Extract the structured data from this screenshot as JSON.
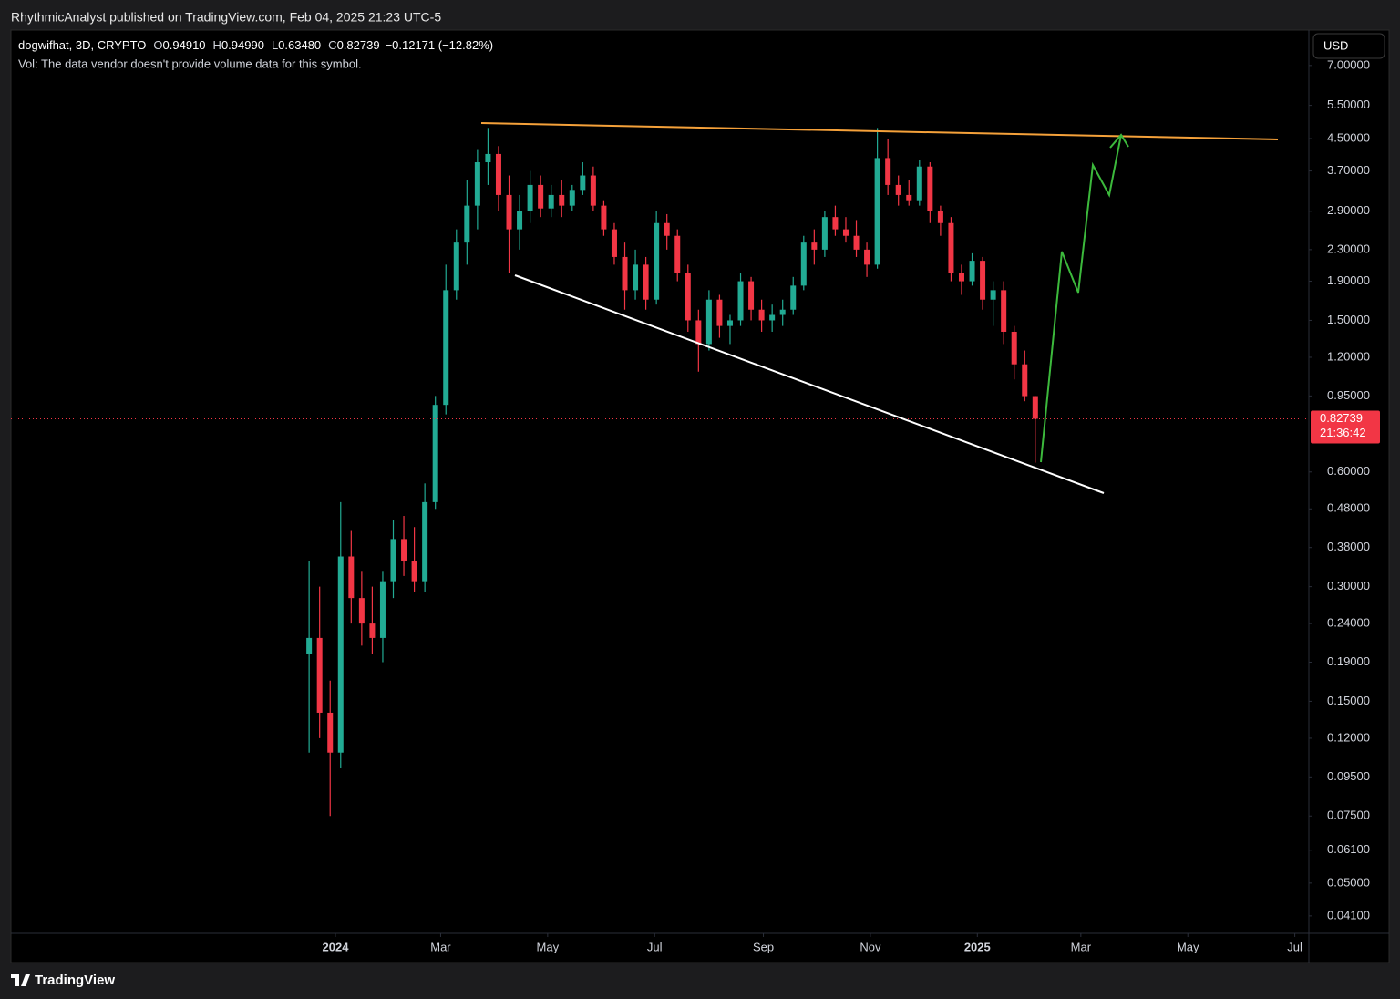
{
  "header": {
    "published": "RhythmicAnalyst published on TradingView.com, Feb 04, 2025 21:23 UTC-5"
  },
  "chart_data": {
    "type": "candlestick",
    "symbol": "dogwifhat, 3D, CRYPTO",
    "ohlc_legend": [
      {
        "label": "O",
        "value": "0.94910"
      },
      {
        "label": "H",
        "value": "0.94990"
      },
      {
        "label": "L",
        "value": "0.63480"
      },
      {
        "label": "C",
        "value": "0.82739"
      }
    ],
    "change": "−0.12171 (−12.82%)",
    "volume_note": "Vol: The data vendor doesn't provide volume data for this symbol.",
    "currency": "USD",
    "countdown": "21:36:42",
    "log_scale": true,
    "grid": false,
    "up_color": "#22ab94",
    "down_color": "#f23645",
    "x": [
      "2023-12-17",
      "2023-12-23",
      "2023-12-29",
      "2024-01-04",
      "2024-01-10",
      "2024-01-16",
      "2024-01-22",
      "2024-01-28",
      "2024-02-03",
      "2024-02-09",
      "2024-02-15",
      "2024-02-21",
      "2024-02-27",
      "2024-03-04",
      "2024-03-10",
      "2024-03-16",
      "2024-03-22",
      "2024-03-28",
      "2024-04-03",
      "2024-04-09",
      "2024-04-15",
      "2024-04-21",
      "2024-04-27",
      "2024-05-03",
      "2024-05-09",
      "2024-05-15",
      "2024-05-21",
      "2024-05-27",
      "2024-06-02",
      "2024-06-08",
      "2024-06-14",
      "2024-06-20",
      "2024-06-26",
      "2024-07-02",
      "2024-07-08",
      "2024-07-14",
      "2024-07-20",
      "2024-07-26",
      "2024-08-01",
      "2024-08-07",
      "2024-08-13",
      "2024-08-19",
      "2024-08-25",
      "2024-08-31",
      "2024-09-06",
      "2024-09-12",
      "2024-09-18",
      "2024-09-24",
      "2024-09-30",
      "2024-10-06",
      "2024-10-12",
      "2024-10-18",
      "2024-10-24",
      "2024-10-30",
      "2024-11-05",
      "2024-11-11",
      "2024-11-17",
      "2024-11-23",
      "2024-11-29",
      "2024-12-05",
      "2024-12-11",
      "2024-12-17",
      "2024-12-23",
      "2024-12-29",
      "2025-01-04",
      "2025-01-10",
      "2025-01-16",
      "2025-01-22",
      "2025-01-28",
      "2025-02-03"
    ],
    "open": [
      0.2,
      0.22,
      0.14,
      0.11,
      0.36,
      0.28,
      0.24,
      0.22,
      0.31,
      0.4,
      0.35,
      0.31,
      0.5,
      0.9,
      1.8,
      2.4,
      3.0,
      3.9,
      4.1,
      3.2,
      2.6,
      2.9,
      3.4,
      2.95,
      3.2,
      3.0,
      3.3,
      3.6,
      3.0,
      2.6,
      2.2,
      1.8,
      2.1,
      1.7,
      2.7,
      2.5,
      2.0,
      1.5,
      1.3,
      1.7,
      1.45,
      1.5,
      1.9,
      1.6,
      1.5,
      1.55,
      1.6,
      1.85,
      2.4,
      2.3,
      2.8,
      2.6,
      2.5,
      2.3,
      2.1,
      4.0,
      3.4,
      3.2,
      3.1,
      3.8,
      2.9,
      2.7,
      2.0,
      1.9,
      2.15,
      1.7,
      1.8,
      1.4,
      1.15,
      0.9491
    ],
    "high": [
      0.35,
      0.3,
      0.17,
      0.5,
      0.42,
      0.33,
      0.3,
      0.33,
      0.45,
      0.46,
      0.43,
      0.56,
      0.95,
      2.1,
      2.6,
      3.5,
      4.2,
      4.8,
      4.3,
      3.6,
      3.2,
      3.7,
      3.6,
      3.4,
      3.5,
      3.4,
      3.9,
      3.8,
      3.1,
      2.7,
      2.4,
      2.3,
      2.2,
      2.9,
      2.85,
      2.6,
      2.1,
      1.6,
      1.8,
      1.75,
      1.55,
      2.0,
      1.95,
      1.7,
      1.65,
      1.7,
      1.95,
      2.5,
      2.6,
      2.9,
      3.0,
      2.8,
      2.75,
      2.4,
      4.8,
      4.5,
      3.6,
      3.5,
      3.95,
      3.9,
      3.0,
      2.8,
      2.1,
      2.25,
      2.2,
      1.9,
      1.9,
      1.45,
      1.25,
      0.9499
    ],
    "low": [
      0.11,
      0.12,
      0.075,
      0.1,
      0.24,
      0.21,
      0.2,
      0.19,
      0.28,
      0.32,
      0.29,
      0.29,
      0.48,
      0.85,
      1.7,
      2.1,
      2.6,
      3.4,
      2.9,
      2.0,
      2.3,
      2.7,
      2.8,
      2.8,
      2.8,
      2.9,
      3.2,
      2.9,
      2.5,
      2.1,
      1.6,
      1.7,
      1.6,
      1.65,
      2.3,
      1.9,
      1.4,
      1.1,
      1.25,
      1.35,
      1.3,
      1.45,
      1.5,
      1.4,
      1.4,
      1.45,
      1.55,
      1.8,
      2.1,
      2.2,
      2.5,
      2.4,
      2.2,
      1.95,
      2.05,
      3.2,
      3.0,
      3.0,
      3.0,
      2.7,
      2.5,
      1.9,
      1.75,
      1.85,
      1.6,
      1.45,
      1.3,
      1.05,
      0.92,
      0.6348
    ],
    "close": [
      0.22,
      0.14,
      0.11,
      0.36,
      0.28,
      0.24,
      0.22,
      0.31,
      0.4,
      0.35,
      0.31,
      0.5,
      0.9,
      1.8,
      2.4,
      3.0,
      3.9,
      4.1,
      3.2,
      2.6,
      2.9,
      3.4,
      2.95,
      3.2,
      3.0,
      3.3,
      3.6,
      3.0,
      2.6,
      2.2,
      1.8,
      2.1,
      1.7,
      2.7,
      2.5,
      2.0,
      1.5,
      1.3,
      1.7,
      1.45,
      1.5,
      1.9,
      1.6,
      1.5,
      1.55,
      1.6,
      1.85,
      2.4,
      2.3,
      2.8,
      2.6,
      2.5,
      2.3,
      2.1,
      4.0,
      3.4,
      3.2,
      3.1,
      3.8,
      2.9,
      2.7,
      2.0,
      1.9,
      2.15,
      1.7,
      1.8,
      1.4,
      1.15,
      0.9491,
      0.82739
    ],
    "xlim": [
      "2023-06-30",
      "2025-07-09"
    ],
    "xticks": [
      {
        "value": "2024-01-01",
        "label": "2024"
      },
      {
        "value": "2024-03-01",
        "label": "Mar"
      },
      {
        "value": "2024-05-01",
        "label": "May"
      },
      {
        "value": "2024-07-01",
        "label": "Jul"
      },
      {
        "value": "2024-09-01",
        "label": "Sep"
      },
      {
        "value": "2024-11-01",
        "label": "Nov"
      },
      {
        "value": "2025-01-01",
        "label": "2025"
      },
      {
        "value": "2025-03-01",
        "label": "Mar"
      },
      {
        "value": "2025-05-01",
        "label": "May"
      },
      {
        "value": "2025-07-01",
        "label": "Jul"
      }
    ],
    "ylim": [
      0.0369,
      8.67
    ],
    "yticks": [
      {
        "value": 7,
        "label": "7.00000"
      },
      {
        "value": 5.5,
        "label": "5.50000"
      },
      {
        "value": 4.5,
        "label": "4.50000"
      },
      {
        "value": 3.7,
        "label": "3.70000"
      },
      {
        "value": 2.9,
        "label": "2.90000"
      },
      {
        "value": 2.3,
        "label": "2.30000"
      },
      {
        "value": 1.9,
        "label": "1.90000"
      },
      {
        "value": 1.5,
        "label": "1.50000"
      },
      {
        "value": 1.2,
        "label": "1.20000"
      },
      {
        "value": 0.95,
        "label": "0.95000"
      },
      {
        "value": 0.6,
        "label": "0.60000"
      },
      {
        "value": 0.48,
        "label": "0.48000"
      },
      {
        "value": 0.38,
        "label": "0.38000"
      },
      {
        "value": 0.3,
        "label": "0.30000"
      },
      {
        "value": 0.24,
        "label": "0.24000"
      },
      {
        "value": 0.19,
        "label": "0.19000"
      },
      {
        "value": 0.15,
        "label": "0.15000"
      },
      {
        "value": 0.12,
        "label": "0.12000"
      },
      {
        "value": 0.095,
        "label": "0.09500"
      },
      {
        "value": 0.075,
        "label": "0.07500"
      },
      {
        "value": 0.061,
        "label": "0.06100"
      },
      {
        "value": 0.05,
        "label": "0.05000"
      },
      {
        "value": 0.041,
        "label": "0.04100"
      }
    ]
  },
  "footer": {
    "brand": "TradingView"
  }
}
